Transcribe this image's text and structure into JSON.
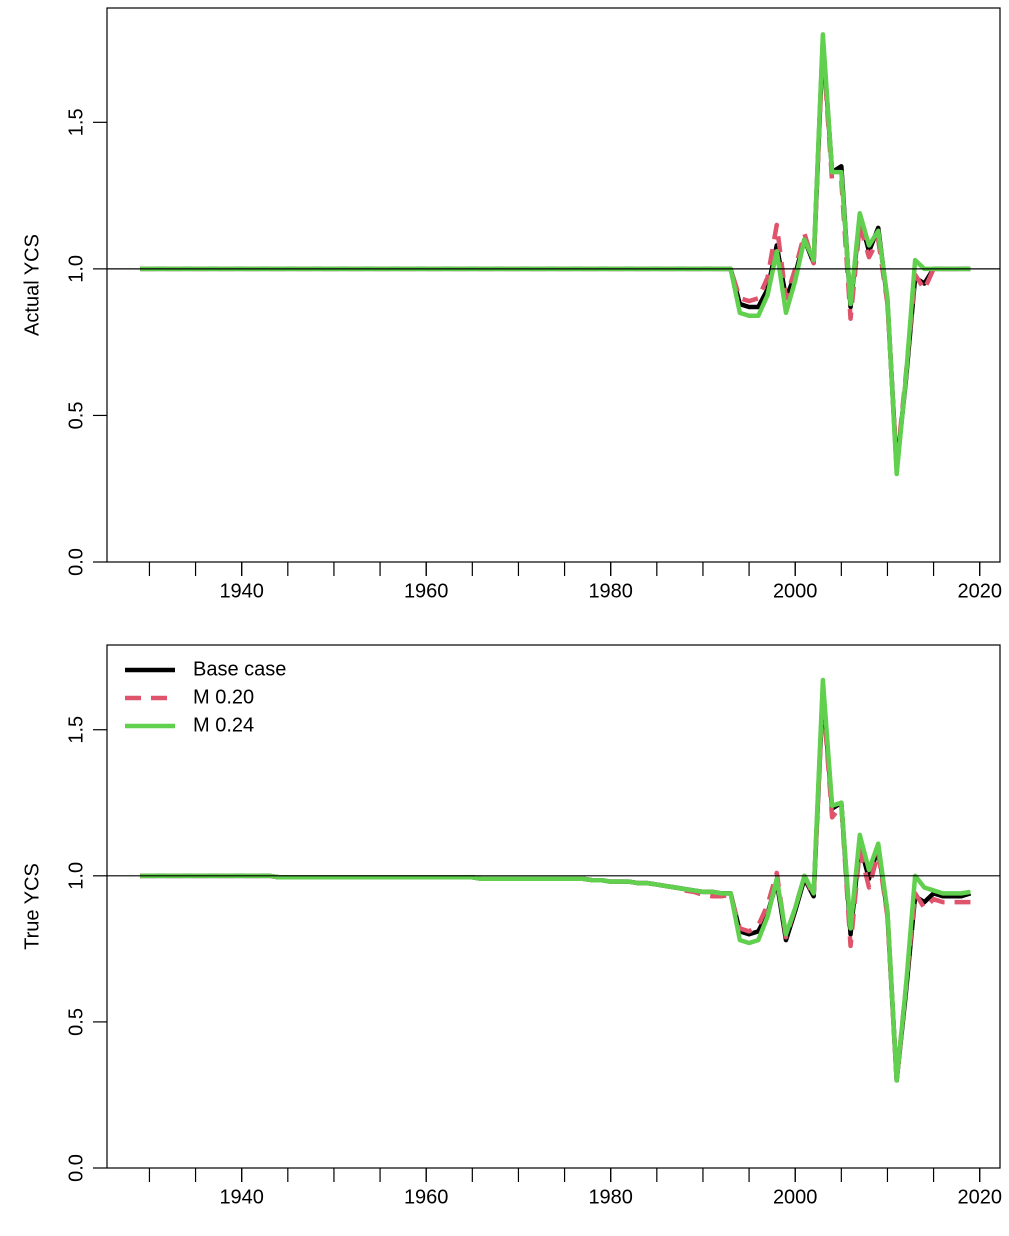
{
  "chart_data": [
    {
      "type": "line",
      "ylabel": "Actual YCS",
      "x": [
        1929,
        1930,
        1931,
        1932,
        1933,
        1934,
        1935,
        1936,
        1937,
        1938,
        1939,
        1940,
        1941,
        1942,
        1943,
        1944,
        1945,
        1946,
        1947,
        1948,
        1949,
        1950,
        1951,
        1952,
        1953,
        1954,
        1955,
        1956,
        1957,
        1958,
        1959,
        1960,
        1961,
        1962,
        1963,
        1964,
        1965,
        1966,
        1967,
        1968,
        1969,
        1970,
        1971,
        1972,
        1973,
        1974,
        1975,
        1976,
        1977,
        1978,
        1979,
        1980,
        1981,
        1982,
        1983,
        1984,
        1985,
        1986,
        1987,
        1988,
        1989,
        1990,
        1991,
        1992,
        1993,
        1994,
        1995,
        1996,
        1997,
        1998,
        1999,
        2000,
        2001,
        2002,
        2003,
        2004,
        2005,
        2006,
        2007,
        2008,
        2009,
        2010,
        2011,
        2012,
        2013,
        2014,
        2015,
        2016,
        2017,
        2018,
        2019
      ],
      "series": [
        {
          "name": "Base case",
          "color": "#000000",
          "dash": false,
          "values": [
            1,
            1,
            1,
            1,
            1,
            1,
            1,
            1,
            1,
            1,
            1,
            1,
            1,
            1,
            1,
            1,
            1,
            1,
            1,
            1,
            1,
            1,
            1,
            1,
            1,
            1,
            1,
            1,
            1,
            1,
            1,
            1,
            1,
            1,
            1,
            1,
            1,
            1,
            1,
            1,
            1,
            1,
            1,
            1,
            1,
            1,
            1,
            1,
            1,
            1,
            1,
            1,
            1,
            1,
            1,
            1,
            1,
            1,
            1,
            1,
            1,
            1,
            1,
            1,
            1,
            0.88,
            0.87,
            0.87,
            0.93,
            1.08,
            0.9,
            0.98,
            1.1,
            1.02,
            1.78,
            1.33,
            1.35,
            0.87,
            1.18,
            1.06,
            1.14,
            0.89,
            0.32,
            0.62,
            0.97,
            0.95,
            1,
            1,
            1,
            1,
            1
          ]
        },
        {
          "name": "M 0.20",
          "color": "#DF536B",
          "dash": true,
          "values": [
            1,
            1,
            1,
            1,
            1,
            1,
            1,
            1,
            1,
            1,
            1,
            1,
            1,
            1,
            1,
            1,
            1,
            1,
            1,
            1,
            1,
            1,
            1,
            1,
            1,
            1,
            1,
            1,
            1,
            1,
            1,
            1,
            1,
            1,
            1,
            1,
            1,
            1,
            1,
            1,
            1,
            1,
            1,
            1,
            1,
            1,
            1,
            1,
            1,
            1,
            1,
            1,
            1,
            1,
            1,
            1,
            1,
            1,
            1,
            1,
            1,
            1,
            1,
            1,
            1,
            0.9,
            0.89,
            0.9,
            0.97,
            1.15,
            0.9,
            1.0,
            1.12,
            1.02,
            1.76,
            1.3,
            1.3,
            0.83,
            1.15,
            1.04,
            1.1,
            0.88,
            0.33,
            0.64,
            0.98,
            0.93,
            1,
            1,
            1,
            1,
            1
          ]
        },
        {
          "name": "M 0.24",
          "color": "#61D04F",
          "dash": false,
          "values": [
            1,
            1,
            1,
            1,
            1,
            1,
            1,
            1,
            1,
            1,
            1,
            1,
            1,
            1,
            1,
            1,
            1,
            1,
            1,
            1,
            1,
            1,
            1,
            1,
            1,
            1,
            1,
            1,
            1,
            1,
            1,
            1,
            1,
            1,
            1,
            1,
            1,
            1,
            1,
            1,
            1,
            1,
            1,
            1,
            1,
            1,
            1,
            1,
            1,
            1,
            1,
            1,
            1,
            1,
            1,
            1,
            1,
            1,
            1,
            1,
            1,
            1,
            1,
            1,
            1,
            0.85,
            0.84,
            0.84,
            0.91,
            1.06,
            0.85,
            0.96,
            1.1,
            1.03,
            1.8,
            1.33,
            1.33,
            0.88,
            1.19,
            1.08,
            1.13,
            0.9,
            0.3,
            0.63,
            1.03,
            1.0,
            1,
            1,
            1,
            1,
            1
          ]
        }
      ],
      "xlim": [
        1925.4,
        2022.2
      ],
      "xticks": [
        1940,
        1960,
        1980,
        2000,
        2020
      ],
      "xticks_minor": [
        1930,
        1935,
        1940,
        1945,
        1950,
        1955,
        1960,
        1965,
        1970,
        1975,
        1980,
        1985,
        1990,
        1995,
        2000,
        2005,
        2010,
        2015,
        2020
      ],
      "ylim": [
        0,
        1.89
      ],
      "yticks": [
        {
          "value": 0,
          "label": "0.0"
        },
        {
          "value": 0.5,
          "label": "0.5"
        },
        {
          "value": 1,
          "label": "1.0"
        },
        {
          "value": 1.5,
          "label": "1.5"
        }
      ],
      "hline": 1
    },
    {
      "type": "line",
      "ylabel": "True YCS",
      "legend": "topleft",
      "x": [
        1929,
        1930,
        1931,
        1932,
        1933,
        1934,
        1935,
        1936,
        1937,
        1938,
        1939,
        1940,
        1941,
        1942,
        1943,
        1944,
        1945,
        1946,
        1947,
        1948,
        1949,
        1950,
        1951,
        1952,
        1953,
        1954,
        1955,
        1956,
        1957,
        1958,
        1959,
        1960,
        1961,
        1962,
        1963,
        1964,
        1965,
        1966,
        1967,
        1968,
        1969,
        1970,
        1971,
        1972,
        1973,
        1974,
        1975,
        1976,
        1977,
        1978,
        1979,
        1980,
        1981,
        1982,
        1983,
        1984,
        1985,
        1986,
        1987,
        1988,
        1989,
        1990,
        1991,
        1992,
        1993,
        1994,
        1995,
        1996,
        1997,
        1998,
        1999,
        2000,
        2001,
        2002,
        2003,
        2004,
        2005,
        2006,
        2007,
        2008,
        2009,
        2010,
        2011,
        2012,
        2013,
        2014,
        2015,
        2016,
        2017,
        2018,
        2019
      ],
      "series": [
        {
          "name": "Base case",
          "color": "#000000",
          "dash": false,
          "values": [
            1,
            1,
            1,
            1,
            1,
            1,
            1,
            1,
            1,
            1,
            1,
            1,
            1,
            1,
            1,
            0.995,
            0.995,
            0.995,
            0.995,
            0.995,
            0.995,
            0.995,
            0.995,
            0.995,
            0.995,
            0.995,
            0.995,
            0.995,
            0.995,
            0.995,
            0.995,
            0.995,
            0.995,
            0.995,
            0.995,
            0.995,
            0.995,
            0.99,
            0.99,
            0.99,
            0.99,
            0.99,
            0.99,
            0.99,
            0.99,
            0.99,
            0.99,
            0.99,
            0.99,
            0.985,
            0.985,
            0.98,
            0.98,
            0.98,
            0.975,
            0.975,
            0.97,
            0.965,
            0.96,
            0.955,
            0.95,
            0.945,
            0.945,
            0.94,
            0.94,
            0.81,
            0.8,
            0.81,
            0.87,
            0.98,
            0.78,
            0.88,
            0.99,
            0.93,
            1.64,
            1.23,
            1.25,
            0.8,
            1.11,
            0.99,
            1.1,
            0.87,
            0.3,
            0.6,
            0.93,
            0.91,
            0.94,
            0.93,
            0.93,
            0.93,
            0.94
          ]
        },
        {
          "name": "M 0.20",
          "color": "#DF536B",
          "dash": true,
          "values": [
            1,
            1,
            1,
            1,
            1,
            1,
            1,
            1,
            1,
            1,
            1,
            1,
            1,
            1,
            1,
            0.995,
            0.995,
            0.995,
            0.995,
            0.995,
            0.995,
            0.995,
            0.995,
            0.995,
            0.995,
            0.995,
            0.995,
            0.995,
            0.995,
            0.995,
            0.995,
            0.995,
            0.995,
            0.995,
            0.995,
            0.995,
            0.995,
            0.99,
            0.99,
            0.99,
            0.99,
            0.99,
            0.99,
            0.99,
            0.99,
            0.99,
            0.99,
            0.99,
            0.99,
            0.985,
            0.985,
            0.98,
            0.98,
            0.98,
            0.975,
            0.975,
            0.97,
            0.965,
            0.96,
            0.95,
            0.945,
            0.935,
            0.93,
            0.93,
            0.935,
            0.82,
            0.81,
            0.83,
            0.9,
            1.01,
            0.79,
            0.89,
            1.0,
            0.93,
            1.62,
            1.2,
            1.24,
            0.76,
            1.09,
            0.96,
            1.08,
            0.86,
            0.3,
            0.62,
            0.94,
            0.89,
            0.92,
            0.91,
            0.91,
            0.91,
            0.91
          ]
        },
        {
          "name": "M 0.24",
          "color": "#61D04F",
          "dash": false,
          "values": [
            1,
            1,
            1,
            1,
            1,
            1,
            1,
            1,
            1,
            1,
            1,
            1,
            1,
            1,
            1,
            0.995,
            0.995,
            0.995,
            0.995,
            0.995,
            0.995,
            0.995,
            0.995,
            0.995,
            0.995,
            0.995,
            0.995,
            0.995,
            0.995,
            0.995,
            0.995,
            0.995,
            0.995,
            0.995,
            0.995,
            0.995,
            0.995,
            0.99,
            0.99,
            0.99,
            0.99,
            0.99,
            0.99,
            0.99,
            0.99,
            0.99,
            0.99,
            0.99,
            0.99,
            0.985,
            0.985,
            0.98,
            0.98,
            0.98,
            0.975,
            0.975,
            0.97,
            0.965,
            0.96,
            0.955,
            0.95,
            0.945,
            0.945,
            0.94,
            0.94,
            0.78,
            0.77,
            0.78,
            0.86,
            0.99,
            0.8,
            0.89,
            1.0,
            0.94,
            1.67,
            1.24,
            1.25,
            0.82,
            1.14,
            1.02,
            1.11,
            0.88,
            0.3,
            0.62,
            1.0,
            0.96,
            0.95,
            0.94,
            0.94,
            0.94,
            0.945
          ]
        }
      ],
      "xlim": [
        1925.4,
        2022.2
      ],
      "xticks": [
        1940,
        1960,
        1980,
        2000,
        2020
      ],
      "xticks_minor": [
        1930,
        1935,
        1940,
        1945,
        1950,
        1955,
        1960,
        1965,
        1970,
        1975,
        1980,
        1985,
        1990,
        1995,
        2000,
        2005,
        2010,
        2015,
        2020
      ],
      "ylim": [
        0,
        1.79
      ],
      "yticks": [
        {
          "value": 0,
          "label": "0.0"
        },
        {
          "value": 0.5,
          "label": "0.5"
        },
        {
          "value": 1,
          "label": "1.0"
        },
        {
          "value": 1.5,
          "label": "1.5"
        }
      ],
      "hline": 1
    }
  ]
}
